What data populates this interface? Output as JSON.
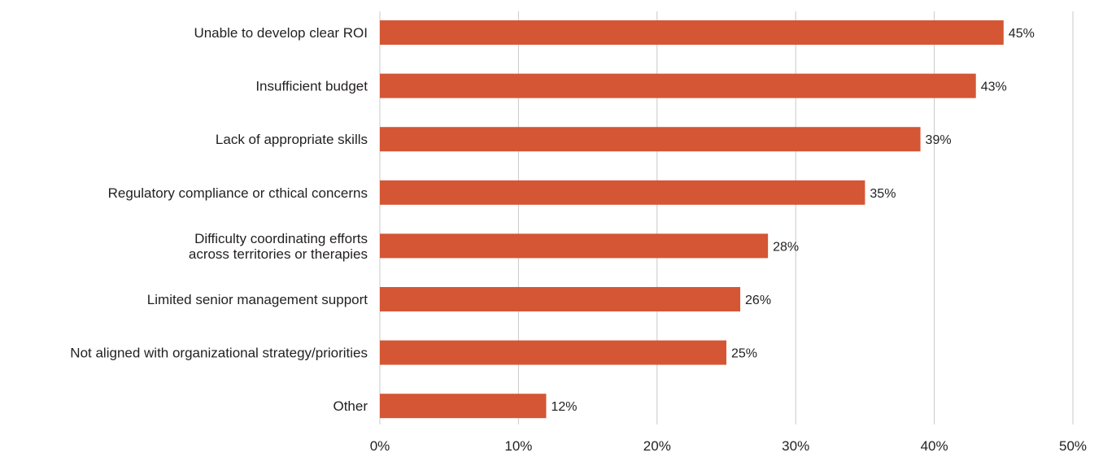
{
  "chart_data": {
    "type": "bar",
    "orientation": "horizontal",
    "title": "",
    "xlabel": "",
    "ylabel": "",
    "categories": [
      "Unable to develop clear ROI",
      "Insufficient budget",
      "Lack of appropriate skills",
      "Regulatory compliance or cthical concerns",
      "Difficulty coordinating efforts\nacross territories or therapies",
      "Limited senior management support",
      "Not aligned with organizational strategy/priorities",
      "Other"
    ],
    "values": [
      45,
      43,
      39,
      35,
      28,
      26,
      25,
      12
    ],
    "value_labels": [
      "45%",
      "43%",
      "39%",
      "35%",
      "28%",
      "26%",
      "25%",
      "12%"
    ],
    "xlim": [
      0,
      50
    ],
    "x_ticks": [
      0,
      10,
      20,
      30,
      40,
      50
    ],
    "x_tick_labels": [
      "0%",
      "10%",
      "20%",
      "30%",
      "40%",
      "50%"
    ],
    "grid": true,
    "legend": "none",
    "bar_color": "#d45634"
  }
}
